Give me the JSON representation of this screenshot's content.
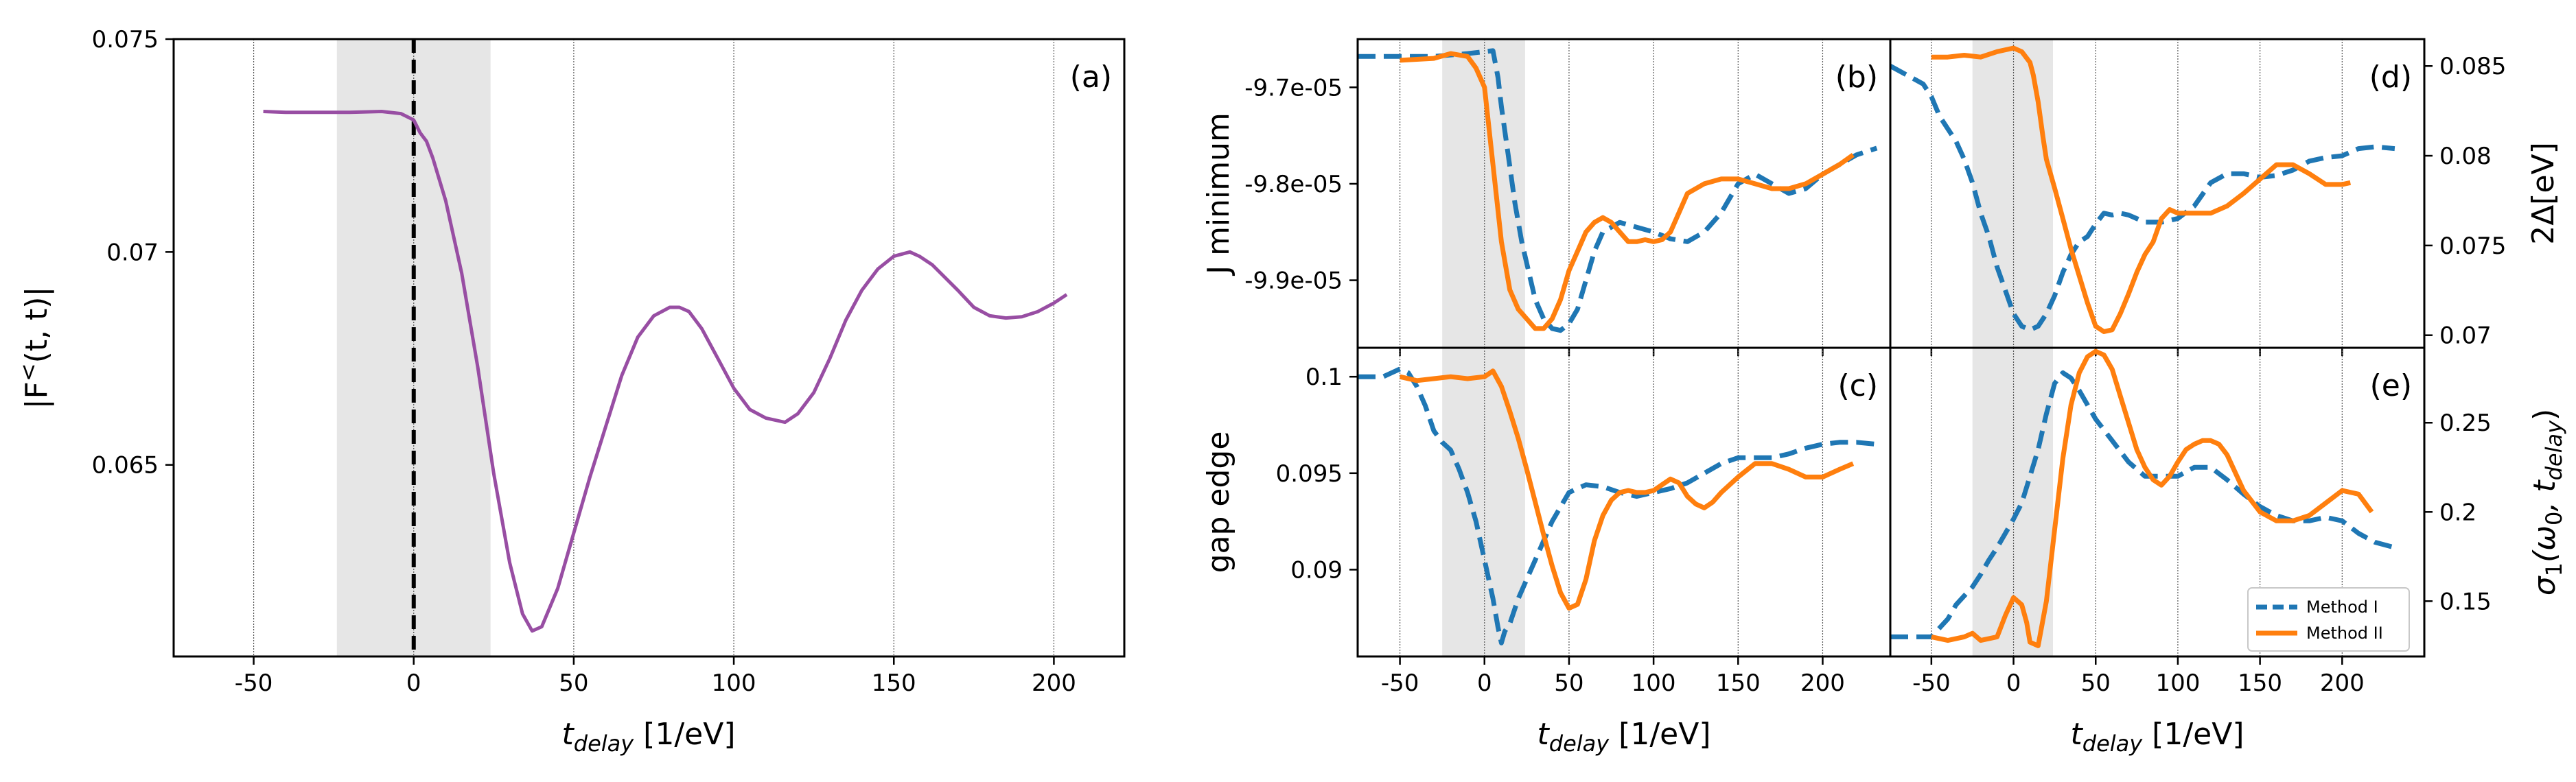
{
  "colors": {
    "purple": "#984ea3",
    "blue": "#1f77b4",
    "orange": "#ff7f0e",
    "shade": "#e6e6e6"
  },
  "chart_data": [
    {
      "type": "line",
      "tag": "(a)",
      "xlabel": "t_delay [1/eV]",
      "ylabel": "|F<(t, t)|",
      "xlim": [
        -75,
        222
      ],
      "ylim": [
        0.0605,
        0.075
      ],
      "xticks": [
        -50,
        0,
        50,
        100,
        150,
        200
      ],
      "xtick_labels": [
        "-50",
        "0",
        "50",
        "100",
        "150",
        "200"
      ],
      "yticks": [
        0.065,
        0.07,
        0.075
      ],
      "ytick_labels": [
        "0.065",
        "0.07",
        "0.075"
      ],
      "shade": [
        -24,
        24
      ],
      "vline": 0,
      "series": [
        {
          "name": "|F<(t,t)|",
          "x": [
            -47,
            -40,
            -30,
            -20,
            -10,
            -4,
            0,
            2,
            4,
            6,
            10,
            15,
            20,
            25,
            30,
            34,
            37,
            40,
            45,
            50,
            55,
            60,
            65,
            70,
            75,
            80,
            83,
            86,
            90,
            95,
            100,
            105,
            110,
            116,
            120,
            125,
            130,
            135,
            140,
            145,
            150,
            155,
            158,
            162,
            166,
            170,
            175,
            180,
            185,
            190,
            195,
            200,
            204
          ],
          "y": [
            0.0733,
            0.07328,
            0.07328,
            0.07328,
            0.0733,
            0.07325,
            0.0731,
            0.0728,
            0.0726,
            0.0722,
            0.0712,
            0.0695,
            0.0673,
            0.0648,
            0.0627,
            0.0615,
            0.0611,
            0.0612,
            0.0621,
            0.0634,
            0.0647,
            0.0659,
            0.0671,
            0.068,
            0.0685,
            0.0687,
            0.0687,
            0.0686,
            0.0682,
            0.0675,
            0.0668,
            0.0663,
            0.0661,
            0.066,
            0.0662,
            0.0667,
            0.0675,
            0.0684,
            0.0691,
            0.0696,
            0.0699,
            0.07,
            0.0699,
            0.0697,
            0.0694,
            0.0691,
            0.0687,
            0.0685,
            0.06845,
            0.06848,
            0.0686,
            0.0688,
            0.069
          ]
        }
      ]
    },
    {
      "type": "line",
      "tag": "(b)",
      "ylabel": "J minimum",
      "xlim": [
        -75,
        240
      ],
      "ylim": [
        -9.97e-05,
        -9.65e-05
      ],
      "yticks": [
        -9.9e-05,
        -9.8e-05,
        -9.7e-05
      ],
      "ytick_labels": [
        "-9.9e-05",
        "-9.8e-05",
        "-9.7e-05"
      ],
      "xticks": [
        -50,
        0,
        50,
        100,
        150,
        200
      ],
      "shade": [
        -25,
        24
      ],
      "series": [
        {
          "name": "Method I",
          "x": [
            -75,
            -50,
            -30,
            -10,
            0,
            5,
            8,
            10,
            14,
            18,
            22,
            26,
            30,
            35,
            40,
            45,
            50,
            55,
            60,
            65,
            70,
            80,
            90,
            100,
            110,
            120,
            130,
            140,
            150,
            160,
            170,
            180,
            190,
            200,
            210,
            220,
            232
          ],
          "y": [
            -9.668e-05,
            -9.668e-05,
            -9.668e-05,
            -9.665e-05,
            -9.663e-05,
            -9.662e-05,
            -9.69e-05,
            -9.72e-05,
            -9.77e-05,
            -9.82e-05,
            -9.86e-05,
            -9.89e-05,
            -9.92e-05,
            -9.94e-05,
            -9.95e-05,
            -9.952e-05,
            -9.945e-05,
            -9.93e-05,
            -9.9e-05,
            -9.87e-05,
            -9.85e-05,
            -9.84e-05,
            -9.845e-05,
            -9.85e-05,
            -9.857e-05,
            -9.86e-05,
            -9.85e-05,
            -9.83e-05,
            -9.8e-05,
            -9.79e-05,
            -9.8e-05,
            -9.81e-05,
            -9.805e-05,
            -9.79e-05,
            -9.78e-05,
            -9.77e-05,
            -9.763e-05
          ]
        },
        {
          "name": "Method II",
          "x": [
            -50,
            -30,
            -20,
            -10,
            -5,
            0,
            5,
            10,
            15,
            20,
            25,
            30,
            35,
            40,
            45,
            50,
            55,
            60,
            65,
            70,
            75,
            80,
            85,
            90,
            95,
            100,
            105,
            110,
            115,
            120,
            130,
            140,
            150,
            160,
            170,
            180,
            190,
            200,
            210,
            218
          ],
          "y": [
            -9.672e-05,
            -9.67e-05,
            -9.665e-05,
            -9.668e-05,
            -9.68e-05,
            -9.7e-05,
            -9.78e-05,
            -9.86e-05,
            -9.91e-05,
            -9.93e-05,
            -9.94e-05,
            -9.95e-05,
            -9.95e-05,
            -9.94e-05,
            -9.92e-05,
            -9.89e-05,
            -9.87e-05,
            -9.85e-05,
            -9.84e-05,
            -9.835e-05,
            -9.84e-05,
            -9.85e-05,
            -9.86e-05,
            -9.86e-05,
            -9.858e-05,
            -9.86e-05,
            -9.858e-05,
            -9.85e-05,
            -9.83e-05,
            -9.81e-05,
            -9.8e-05,
            -9.795e-05,
            -9.795e-05,
            -9.8e-05,
            -9.805e-05,
            -9.805e-05,
            -9.8e-05,
            -9.79e-05,
            -9.78e-05,
            -9.77e-05
          ]
        }
      ]
    },
    {
      "type": "line",
      "tag": "(c)",
      "xlabel": "t_delay [1/eV]",
      "ylabel": "gap edge",
      "xlim": [
        -75,
        240
      ],
      "ylim": [
        0.0855,
        0.1015
      ],
      "xticks": [
        -50,
        0,
        50,
        100,
        150,
        200
      ],
      "xtick_labels": [
        "-50",
        "0",
        "50",
        "100",
        "150",
        "200"
      ],
      "yticks": [
        0.09,
        0.095,
        0.1
      ],
      "ytick_labels": [
        "0.09",
        "0.095",
        "0.1"
      ],
      "shade": [
        -25,
        24
      ],
      "series": [
        {
          "name": "Method I",
          "x": [
            -75,
            -60,
            -50,
            -45,
            -40,
            -35,
            -30,
            -25,
            -20,
            -15,
            -10,
            -5,
            0,
            5,
            8,
            10,
            12,
            15,
            20,
            25,
            30,
            35,
            40,
            50,
            60,
            70,
            80,
            90,
            100,
            110,
            120,
            130,
            140,
            150,
            160,
            170,
            180,
            190,
            200,
            210,
            220,
            232
          ],
          "y": [
            0.1,
            0.1,
            0.1004,
            0.1002,
            0.0995,
            0.0985,
            0.0972,
            0.0966,
            0.0962,
            0.0952,
            0.094,
            0.0925,
            0.0905,
            0.0885,
            0.087,
            0.0862,
            0.0868,
            0.0872,
            0.0885,
            0.0895,
            0.0905,
            0.0915,
            0.0925,
            0.094,
            0.0944,
            0.0943,
            0.094,
            0.0938,
            0.094,
            0.0942,
            0.0945,
            0.095,
            0.0955,
            0.0958,
            0.0958,
            0.0958,
            0.096,
            0.0963,
            0.0965,
            0.0966,
            0.0966,
            0.0965
          ]
        },
        {
          "name": "Method II",
          "x": [
            -50,
            -40,
            -30,
            -20,
            -10,
            0,
            5,
            10,
            15,
            20,
            25,
            30,
            35,
            40,
            45,
            50,
            55,
            60,
            65,
            70,
            75,
            80,
            85,
            90,
            95,
            100,
            105,
            110,
            115,
            120,
            125,
            130,
            135,
            140,
            150,
            160,
            170,
            180,
            190,
            200,
            210,
            218
          ],
          "y": [
            0.1,
            0.0998,
            0.0999,
            0.1,
            0.0999,
            0.1,
            0.1003,
            0.0995,
            0.0982,
            0.0968,
            0.0952,
            0.0935,
            0.0918,
            0.0902,
            0.0888,
            0.088,
            0.0882,
            0.0895,
            0.0915,
            0.0928,
            0.0936,
            0.094,
            0.0941,
            0.094,
            0.094,
            0.0941,
            0.0944,
            0.0947,
            0.0945,
            0.0938,
            0.0934,
            0.0932,
            0.0935,
            0.094,
            0.0948,
            0.0955,
            0.0955,
            0.0952,
            0.0948,
            0.0948,
            0.0952,
            0.0955
          ]
        }
      ]
    },
    {
      "type": "line",
      "tag": "(d)",
      "ylabel": "2Δ[eV]",
      "xlim": [
        -75,
        250
      ],
      "ylim": [
        0.0693,
        0.0865
      ],
      "xticks": [
        -50,
        0,
        50,
        100,
        150,
        200
      ],
      "yticks": [
        0.07,
        0.075,
        0.08,
        0.085
      ],
      "ytick_labels": [
        "0.07",
        "0.075",
        "0.08",
        "0.085"
      ],
      "shade": [
        -25,
        24
      ],
      "series": [
        {
          "name": "Method I",
          "x": [
            -75,
            -65,
            -55,
            -50,
            -45,
            -40,
            -35,
            -30,
            -25,
            -20,
            -15,
            -10,
            -5,
            0,
            5,
            10,
            15,
            20,
            25,
            30,
            35,
            40,
            45,
            50,
            55,
            60,
            65,
            70,
            80,
            90,
            100,
            110,
            120,
            130,
            140,
            150,
            160,
            170,
            180,
            190,
            200,
            210,
            220,
            232
          ],
          "y": [
            0.085,
            0.0845,
            0.084,
            0.0833,
            0.0822,
            0.0815,
            0.0808,
            0.0798,
            0.0785,
            0.0768,
            0.0755,
            0.0738,
            0.0725,
            0.0712,
            0.0705,
            0.0703,
            0.0705,
            0.0712,
            0.0722,
            0.0735,
            0.0745,
            0.0752,
            0.0755,
            0.0762,
            0.0768,
            0.0767,
            0.0768,
            0.0767,
            0.0763,
            0.0763,
            0.0765,
            0.0772,
            0.0785,
            0.079,
            0.079,
            0.0788,
            0.0789,
            0.0792,
            0.0797,
            0.0799,
            0.08,
            0.0804,
            0.0805,
            0.0804
          ]
        },
        {
          "name": "Method II",
          "x": [
            -50,
            -40,
            -30,
            -20,
            -10,
            0,
            5,
            10,
            12,
            15,
            18,
            20,
            25,
            30,
            35,
            40,
            45,
            50,
            55,
            60,
            65,
            70,
            75,
            80,
            85,
            90,
            95,
            100,
            110,
            120,
            130,
            140,
            150,
            160,
            170,
            180,
            190,
            200,
            205
          ],
          "y": [
            0.0855,
            0.0855,
            0.0856,
            0.0855,
            0.0858,
            0.086,
            0.0858,
            0.0852,
            0.0845,
            0.083,
            0.081,
            0.0798,
            0.0782,
            0.0765,
            0.0748,
            0.0733,
            0.0718,
            0.0705,
            0.0702,
            0.0703,
            0.0712,
            0.0723,
            0.0735,
            0.0745,
            0.0752,
            0.0765,
            0.077,
            0.0768,
            0.0768,
            0.0768,
            0.0772,
            0.0779,
            0.0787,
            0.0795,
            0.0795,
            0.079,
            0.0784,
            0.0784,
            0.0785
          ]
        }
      ]
    },
    {
      "type": "line",
      "tag": "(e)",
      "xlabel": "t_delay [1/eV]",
      "ylabel": "σ1(ω0, t_delay)",
      "xlim": [
        -75,
        250
      ],
      "ylim": [
        0.119,
        0.292
      ],
      "xticks": [
        -50,
        0,
        50,
        100,
        150,
        200
      ],
      "xtick_labels": [
        "-50",
        "0",
        "50",
        "100",
        "150",
        "200"
      ],
      "yticks": [
        0.15,
        0.2,
        0.25
      ],
      "ytick_labels": [
        "0.15",
        "0.2",
        "0.25"
      ],
      "shade": [
        -25,
        24
      ],
      "legend": {
        "loc": "lower-right"
      },
      "series": [
        {
          "name": "Method I",
          "x": [
            -75,
            -60,
            -50,
            -45,
            -40,
            -35,
            -30,
            -25,
            -20,
            -15,
            -10,
            -5,
            0,
            5,
            10,
            15,
            20,
            25,
            30,
            35,
            40,
            45,
            50,
            60,
            70,
            80,
            90,
            100,
            110,
            120,
            130,
            140,
            150,
            160,
            170,
            180,
            190,
            200,
            210,
            220,
            232
          ],
          "y": [
            0.13,
            0.13,
            0.13,
            0.135,
            0.14,
            0.148,
            0.153,
            0.158,
            0.165,
            0.173,
            0.18,
            0.188,
            0.196,
            0.205,
            0.22,
            0.235,
            0.255,
            0.272,
            0.278,
            0.275,
            0.268,
            0.26,
            0.252,
            0.24,
            0.228,
            0.22,
            0.22,
            0.22,
            0.225,
            0.225,
            0.218,
            0.21,
            0.203,
            0.198,
            0.195,
            0.195,
            0.197,
            0.195,
            0.188,
            0.183,
            0.18
          ]
        },
        {
          "name": "Method II",
          "x": [
            -50,
            -40,
            -30,
            -25,
            -20,
            -10,
            -5,
            0,
            5,
            8,
            10,
            15,
            20,
            25,
            30,
            35,
            40,
            45,
            50,
            55,
            60,
            65,
            70,
            75,
            80,
            85,
            90,
            95,
            100,
            105,
            110,
            115,
            120,
            125,
            130,
            135,
            140,
            150,
            160,
            170,
            180,
            190,
            200,
            210,
            218
          ],
          "y": [
            0.13,
            0.128,
            0.13,
            0.132,
            0.128,
            0.13,
            0.142,
            0.152,
            0.148,
            0.138,
            0.127,
            0.125,
            0.15,
            0.19,
            0.23,
            0.26,
            0.278,
            0.287,
            0.29,
            0.288,
            0.28,
            0.265,
            0.25,
            0.235,
            0.225,
            0.218,
            0.215,
            0.22,
            0.228,
            0.235,
            0.238,
            0.24,
            0.24,
            0.238,
            0.232,
            0.222,
            0.212,
            0.2,
            0.195,
            0.195,
            0.198,
            0.205,
            0.212,
            0.21,
            0.2
          ]
        }
      ]
    }
  ]
}
